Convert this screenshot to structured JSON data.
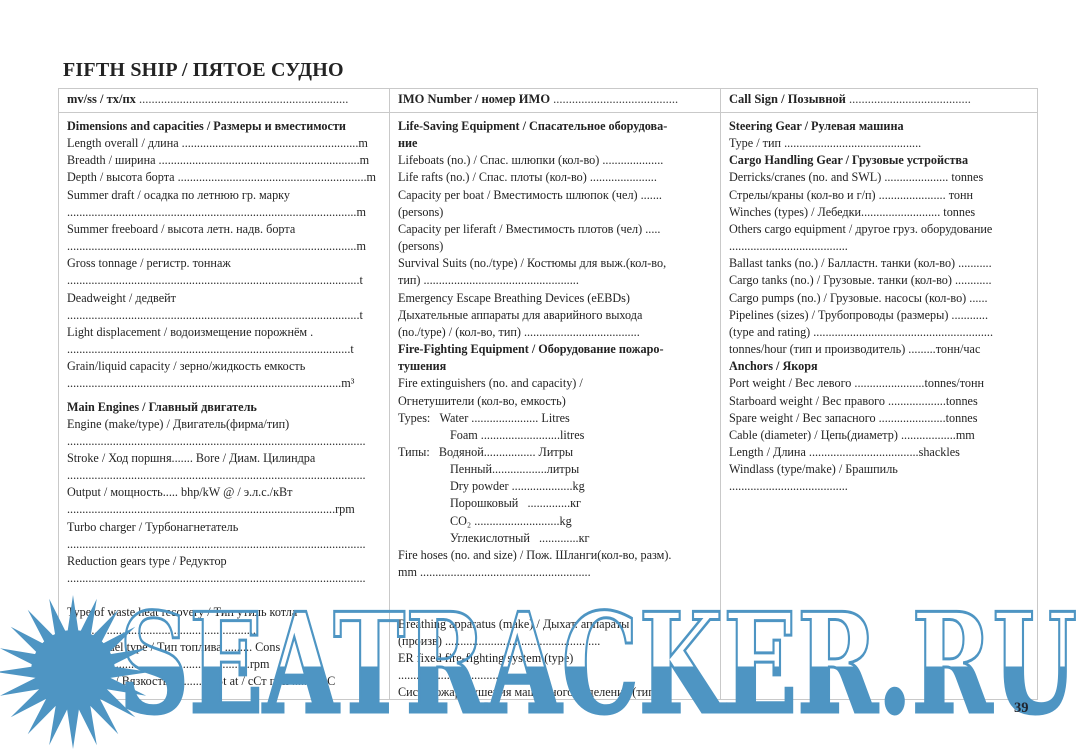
{
  "title": "FIFTH SHIP / ПЯТОЕ СУДНО",
  "page_number": "39",
  "watermark": {
    "text": "SEATRACKER.RU",
    "color": "#4e95c3"
  },
  "header_cells": [
    {
      "label": "mv/ss / тх/пх",
      "dots": " ..................................................................."
    },
    {
      "label": "IMO Number / номер ИМО",
      "dots": " ........................................"
    },
    {
      "label": "Call Sign / Позывной",
      "dots": " ......................................."
    }
  ],
  "columns": [
    {
      "lines": [
        {
          "b": 1,
          "t": "Dimensions and capacities / Размеры и вместимости"
        },
        {
          "t": "Length overall / длина ..........................................................m"
        },
        {
          "t": "Breadth / ширина ..................................................................m"
        },
        {
          "t": "Depth / высота борта ..............................................................m"
        },
        {
          "t": "Summer draft / осадка по летнюю гр. марку"
        },
        {
          "t": "...............................................................................................m"
        },
        {
          "t": "Summer freeboard / высота летн. надв. борта"
        },
        {
          "t": "...............................................................................................m"
        },
        {
          "t": "Gross tonnage / регистр. тоннаж"
        },
        {
          "t": "................................................................................................t"
        },
        {
          "t": "Deadweight / дедвейт"
        },
        {
          "t": "................................................................................................t"
        },
        {
          "t": "Light displacement / водоизмещение порожнём ."
        },
        {
          "t": ".............................................................................................t"
        },
        {
          "t": "Grain/liquid capacity / зерно/жидкость емкость"
        },
        {
          "t": "..........................................................................................m³"
        },
        {
          "t": "",
          "h": 6
        },
        {
          "b": 1,
          "t": "Main Engines / Главный двигатель"
        },
        {
          "t": "Engine (make/type) / Двигатель(фирма/тип)"
        },
        {
          "t": ".................................................................................................."
        },
        {
          "t": "Stroke / Ход поршня....... Bore / Диам. Цилиндра"
        },
        {
          "t": ".................................................................................................."
        },
        {
          "t": "Output / мощность..... bhp/kW @ / э.л.с./кВт"
        },
        {
          "t": "........................................................................................rpm"
        },
        {
          "t": "Turbo charger / Турбонагнетатель"
        },
        {
          "t": ".................................................................................................."
        },
        {
          "t": "Reduction gears type / Редуктор"
        },
        {
          "t": ".................................................................................................."
        },
        {
          "t": ""
        },
        {
          "t": "Type of waste heat recovery / Тип утиль котла"
        },
        {
          "t": ".............................................................."
        },
        {
          "t": "Engine fuel type / Тип топлива ......... Cons"
        },
        {
          "t": "............................................................rpm"
        },
        {
          "t": "Viscosity / Вязкость..............cSt at / сСт при ..........°C"
        }
      ]
    },
    {
      "lines": [
        {
          "b": 1,
          "t": "Life-Saving Equipment / Спасательное оборудова-"
        },
        {
          "b": 1,
          "t": "ние"
        },
        {
          "t": "Lifeboats (no.) / Спас. шлюпки (кол-во) ...................."
        },
        {
          "t": "Life rafts (no.) / Спас. плоты (кол-во) ......................"
        },
        {
          "t": "Capacity per boat / Вместимость шлюпок (чел) ......."
        },
        {
          "t": "(persons)"
        },
        {
          "t": "Capacity per liferaft / Вместимость плотов (чел) ....."
        },
        {
          "t": "(persons)"
        },
        {
          "t": "Survival Suits (no./type) / Костюмы для выж.(кол-во,"
        },
        {
          "t": "тип) ..................................................."
        },
        {
          "t": "Emergency Escape Breathing Devices (eEBDs)"
        },
        {
          "t": "Дыхательные аппараты для аварийного выхода"
        },
        {
          "t": "(no./type) / (кол-во, тип) ......................................"
        },
        {
          "b": 1,
          "t": "Fire-Fighting Equipment / Оборудование пожаро-"
        },
        {
          "b": 1,
          "t": "тушения"
        },
        {
          "t": "Fire extinguishers (no. and capacity) /"
        },
        {
          "t": "Огнетушители (кол-во, емкость)"
        },
        {
          "t": "Types:   Water ...................... Litres"
        },
        {
          "i": 1,
          "t": "Foam ..........................litres"
        },
        {
          "t": "Типы:   Водяной................. Литры"
        },
        {
          "i": 1,
          "t": "Пенный..................литры"
        },
        {
          "i": 1,
          "t": "Dry powder ....................kg"
        },
        {
          "i": 1,
          "t": "Порошковый   ..............кг"
        },
        {
          "i": 1,
          "t": "CO₂ ............................kg"
        },
        {
          "i": 1,
          "t": "Углекислотный   .............кг"
        },
        {
          "t": "Fire hoses (no. and size) / Пож. Шланги(кол-во, разм)."
        },
        {
          "t": "mm ........................................................"
        },
        {
          "t": ""
        },
        {
          "t": ""
        },
        {
          "t": "Breathing apparatus (make) / Дыхат. аппараты"
        },
        {
          "t": "(произв) ..................................................."
        },
        {
          "t": "ER fixed fire-fighting system (type)"
        },
        {
          "t": "..............................................."
        },
        {
          "t": "Сист. пожаротушения машинного отделения (тип)"
        }
      ]
    },
    {
      "lines": [
        {
          "b": 1,
          "t": "Steering Gear / Рулевая машина"
        },
        {
          "t": "Type / тип ............................................."
        },
        {
          "b": 1,
          "t": "Cargo Handling Gear / Грузовые устройства"
        },
        {
          "t": "Derricks/cranes (no. and SWL) ..................... tonnes"
        },
        {
          "t": "Стрелы/краны (кол-во и г/п) ...................... тонн"
        },
        {
          "t": "Winches (types) / Лебедки.......................... tonnes"
        },
        {
          "t": "Others cargo equipment / другое груз. оборудование"
        },
        {
          "t": "......................................."
        },
        {
          "t": "Ballast tanks (no.) / Балластн. танки (кол-во) ..........."
        },
        {
          "t": "Cargo tanks (no.) / Грузовые. танки (кол-во) ............"
        },
        {
          "t": "Cargo pumps (no.) / Грузовые. насосы (кол-во) ......"
        },
        {
          "t": "Pipelines (sizes) / Трубопроводы (размеры) ............"
        },
        {
          "t": "(type and rating) ..........................................................."
        },
        {
          "t": "tonnes/hour (тип и производитель) .........тонн/час"
        },
        {
          "b": 1,
          "t": "Anchors / Якоря"
        },
        {
          "t": "Port weight / Вес левого .......................tonnes/тонн"
        },
        {
          "t": "Starboard weight / Вес правого ...................tonnes"
        },
        {
          "t": "Spare weight / Вес запасного ......................tonnes"
        },
        {
          "t": "Cable (diameter) / Цепь(диаметр) ..................mm"
        },
        {
          "t": "Length / Длина ....................................shackles"
        },
        {
          "t": "Windlass (type/make) / Брашпиль"
        },
        {
          "t": "......................................."
        }
      ]
    }
  ]
}
